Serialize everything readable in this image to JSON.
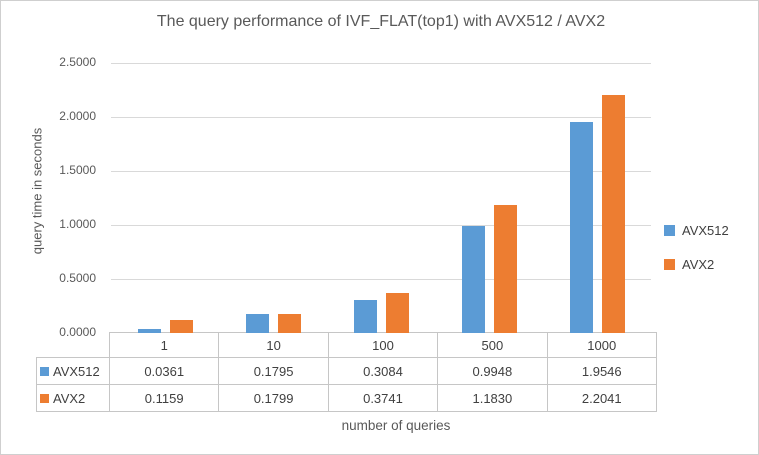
{
  "chart_data": {
    "type": "bar",
    "title": "The query performance of IVF_FLAT(top1) with AVX512 / AVX2",
    "xlabel": "number of queries",
    "ylabel": "query time in seconds",
    "categories": [
      "1",
      "10",
      "100",
      "500",
      "1000"
    ],
    "series": [
      {
        "name": "AVX512",
        "color": "#5B9BD5",
        "values": [
          0.0361,
          0.1795,
          0.3084,
          0.9948,
          1.9546
        ]
      },
      {
        "name": "AVX2",
        "color": "#ED7D31",
        "values": [
          0.1159,
          0.1799,
          0.3741,
          1.183,
          2.2041
        ]
      }
    ],
    "ylim": [
      0,
      2.5
    ],
    "yticks": [
      "0.0000",
      "0.5000",
      "1.0000",
      "1.5000",
      "2.0000",
      "2.5000"
    ],
    "grid": true,
    "legend_position": "right",
    "data_table_shown": true,
    "value_decimals": 4
  },
  "colors": {
    "gridline": "#d9d9d9",
    "table_border": "#c6c6c6",
    "text_axis": "#595959",
    "text_table": "#404040"
  }
}
